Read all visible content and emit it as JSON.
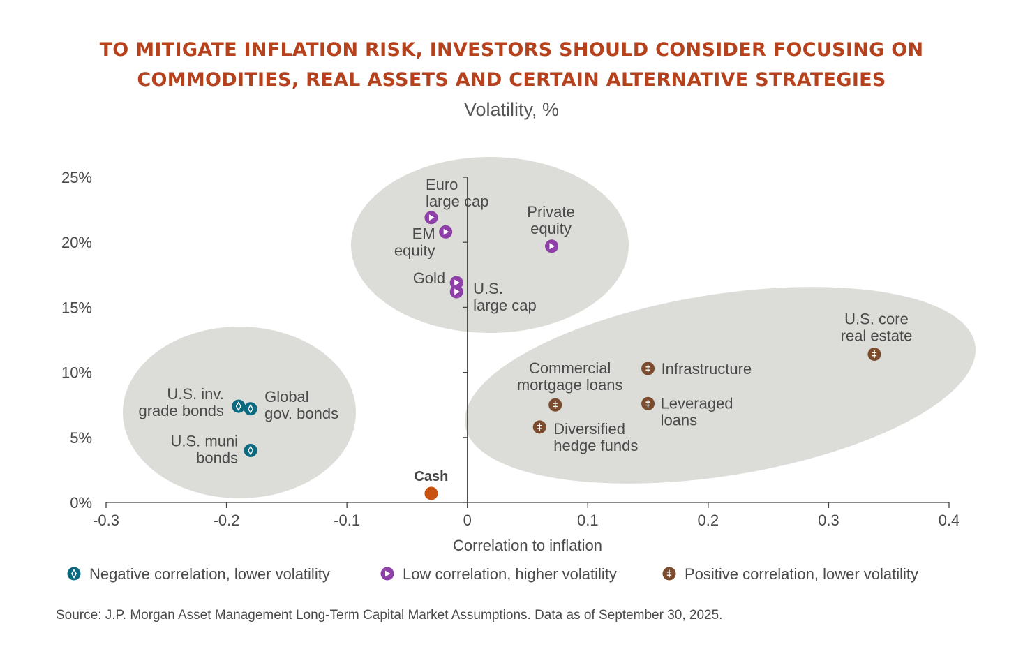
{
  "title_lines": [
    "TO MITIGATE INFLATION RISK, INVESTORS SHOULD CONSIDER FOCUSING ON",
    "COMMODITIES, REAL ASSETS AND CERTAIN ALTERNATIVE STRATEGIES"
  ],
  "source": "Source: J.P. Morgan Asset Management Long-Term Capital Market Assumptions. Data as of September 30, 2025.",
  "colors": {
    "title": "#b5421c",
    "negative": "#0b6a80",
    "low": "#8e3fa8",
    "positive": "#7a4b2c",
    "cash": "#c9520f",
    "ellipse": "#dcdcd8",
    "axis": "#444444",
    "text": "#4a4a4a"
  },
  "chart_data": {
    "type": "scatter",
    "subtitle": "Volatility, %",
    "xlabel": "Correlation to inflation",
    "ylabel": "Volatility, %",
    "xlim": [
      -0.3,
      0.4
    ],
    "ylim": [
      0,
      25
    ],
    "x_ticks": [
      -0.3,
      -0.2,
      -0.1,
      0,
      0.1,
      0.2,
      0.3,
      0.4
    ],
    "x_tick_labels": [
      "-0.3",
      "-0.2",
      "-0.1",
      "0",
      "0.1",
      "0.2",
      "0.3",
      "0.4"
    ],
    "y_ticks": [
      0,
      5,
      10,
      15,
      20,
      25
    ],
    "y_tick_labels": [
      "0%",
      "5%",
      "10%",
      "15%",
      "20%",
      "25%"
    ],
    "grid": false,
    "legend_position": "bottom",
    "series": [
      {
        "name": "Negative correlation, lower volatility",
        "key": "negative",
        "points": [
          {
            "label": [
              "U.S. inv.",
              "grade bonds"
            ],
            "x": -0.19,
            "y": 7.4
          },
          {
            "label": [
              "Global",
              "gov. bonds"
            ],
            "x": -0.18,
            "y": 7.2
          },
          {
            "label": [
              "U.S. muni",
              "bonds"
            ],
            "x": -0.18,
            "y": 4.0
          }
        ]
      },
      {
        "name": "Low correlation, higher volatility",
        "key": "low",
        "points": [
          {
            "label": [
              "Euro",
              "large cap"
            ],
            "x": -0.03,
            "y": 21.9
          },
          {
            "label": [
              "EM",
              "equity"
            ],
            "x": -0.018,
            "y": 20.8
          },
          {
            "label": [
              "Private",
              "equity"
            ],
            "x": 0.07,
            "y": 19.7
          },
          {
            "label": [
              "Gold"
            ],
            "x": -0.009,
            "y": 16.9
          },
          {
            "label": [
              "U.S.",
              "large cap"
            ],
            "x": -0.009,
            "y": 16.2
          }
        ]
      },
      {
        "name": "Positive correlation, lower volatility",
        "key": "positive",
        "points": [
          {
            "label": [
              "U.S. core",
              "real estate"
            ],
            "x": 0.338,
            "y": 11.4
          },
          {
            "label": [
              "Commercial",
              "mortgage loans"
            ],
            "x": 0.073,
            "y": 7.5
          },
          {
            "label": [
              "Infrastructure"
            ],
            "x": 0.15,
            "y": 10.3
          },
          {
            "label": [
              "Leveraged",
              "loans"
            ],
            "x": 0.15,
            "y": 7.6
          },
          {
            "label": [
              "Diversified",
              "hedge funds"
            ],
            "x": 0.06,
            "y": 5.8
          }
        ]
      }
    ],
    "annotations": [
      {
        "label": "Cash",
        "x": -0.03,
        "y": 0.7
      }
    ]
  }
}
